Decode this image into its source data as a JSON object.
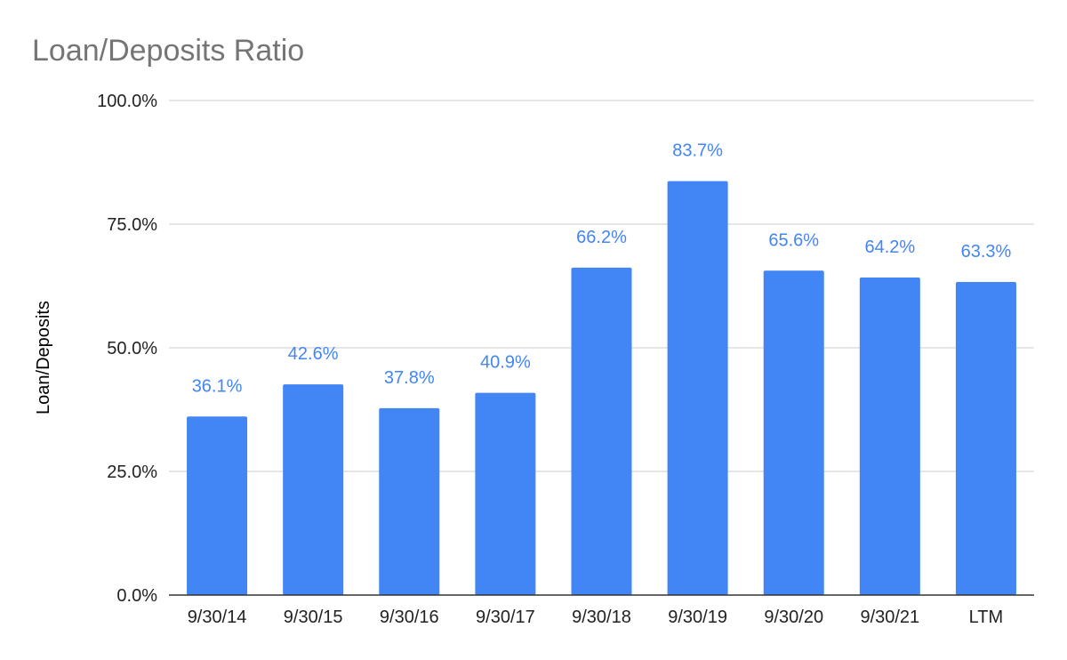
{
  "chart_data": {
    "type": "bar",
    "title": "Loan/Deposits Ratio",
    "xlabel": "",
    "ylabel": "Loan/Deposits",
    "categories": [
      "9/30/14",
      "9/30/15",
      "9/30/16",
      "9/30/17",
      "9/30/18",
      "9/30/19",
      "9/30/20",
      "9/30/21",
      "LTM"
    ],
    "values": [
      36.1,
      42.6,
      37.8,
      40.9,
      66.2,
      83.7,
      65.6,
      64.2,
      63.3
    ],
    "data_labels": [
      "36.1%",
      "42.6%",
      "37.8%",
      "40.9%",
      "66.2%",
      "83.7%",
      "65.6%",
      "64.2%",
      "63.3%"
    ],
    "ylim": [
      0,
      100
    ],
    "y_ticks": [
      0,
      25,
      50,
      75,
      100
    ],
    "y_tick_labels": [
      "0.0%",
      "25.0%",
      "50.0%",
      "75.0%",
      "100.0%"
    ],
    "grid": true,
    "legend": "none",
    "bar_color": "#4285f4",
    "label_color": "#4285f4"
  }
}
